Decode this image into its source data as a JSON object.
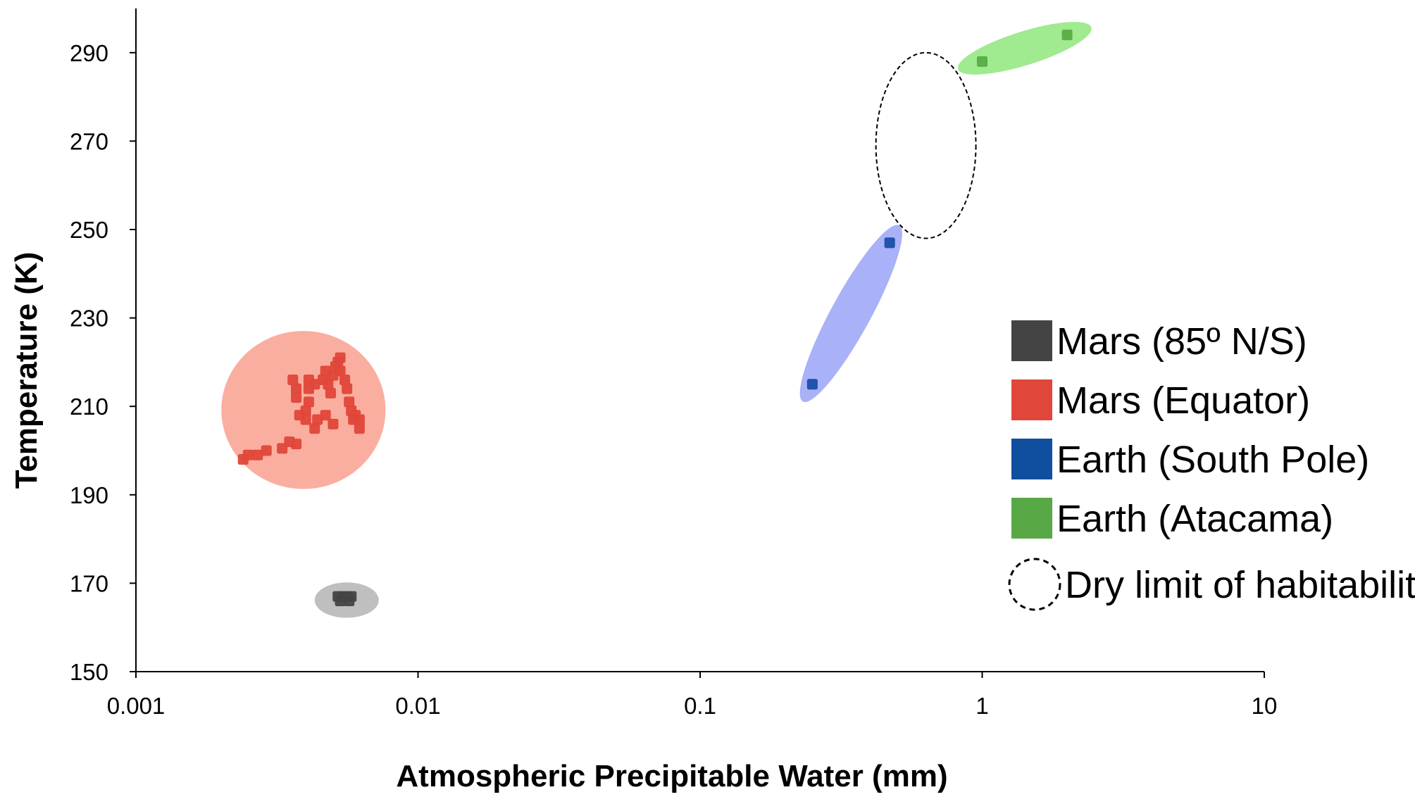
{
  "chart_data": {
    "type": "scatter",
    "xlabel": "Atmospheric Precipitable Water (mm)",
    "ylabel": "Temperature (K)",
    "xscale": "log",
    "xlim": [
      0.001,
      10
    ],
    "ylim": [
      150,
      300
    ],
    "x_ticks": [
      0.001,
      0.01,
      0.1,
      1,
      10
    ],
    "x_tick_labels": [
      "0.001",
      "0.01",
      "0.1",
      "1",
      "10"
    ],
    "y_ticks": [
      150,
      170,
      190,
      210,
      230,
      250,
      270,
      290
    ],
    "y_tick_labels": [
      "150",
      "170",
      "190",
      "210",
      "230",
      "250",
      "270",
      "290"
    ],
    "grid": false,
    "legend_position": "right",
    "series": [
      {
        "name": "Mars (85º N/S)",
        "color": "#444444",
        "region_color": "#b8b8b8",
        "points": [
          [
            0.0052,
            167
          ],
          [
            0.0054,
            167
          ],
          [
            0.0056,
            167
          ],
          [
            0.0058,
            167
          ],
          [
            0.0053,
            166
          ],
          [
            0.0057,
            166
          ]
        ]
      },
      {
        "name": "Mars (Equator)",
        "color": "#e0473a",
        "region_color": "#f9a596",
        "points": [
          [
            0.0024,
            198
          ],
          [
            0.0025,
            199
          ],
          [
            0.0027,
            199
          ],
          [
            0.0029,
            200
          ],
          [
            0.0033,
            200.5
          ],
          [
            0.0035,
            202
          ],
          [
            0.0037,
            201.5
          ],
          [
            0.0036,
            216
          ],
          [
            0.0037,
            214
          ],
          [
            0.0037,
            212
          ],
          [
            0.0038,
            208
          ],
          [
            0.004,
            207
          ],
          [
            0.004,
            209
          ],
          [
            0.0041,
            211
          ],
          [
            0.0041,
            216
          ],
          [
            0.0041,
            214
          ],
          [
            0.0043,
            205
          ],
          [
            0.0043,
            215
          ],
          [
            0.0044,
            207
          ],
          [
            0.0046,
            216
          ],
          [
            0.0047,
            218
          ],
          [
            0.0048,
            215
          ],
          [
            0.0049,
            213
          ],
          [
            0.005,
            217
          ],
          [
            0.005,
            206
          ],
          [
            0.0051,
            219
          ],
          [
            0.0052,
            220
          ],
          [
            0.0053,
            221
          ],
          [
            0.0053,
            218
          ],
          [
            0.0055,
            216
          ],
          [
            0.0056,
            214
          ],
          [
            0.0057,
            211
          ],
          [
            0.0058,
            209
          ],
          [
            0.0059,
            207
          ],
          [
            0.006,
            208
          ],
          [
            0.0062,
            207
          ],
          [
            0.0062,
            205
          ],
          [
            0.0047,
            208
          ]
        ]
      },
      {
        "name": "Earth (South Pole)",
        "color": "#1a4fa8",
        "region_color": "#9aa3f7",
        "points": [
          [
            0.25,
            215
          ],
          [
            0.47,
            247
          ]
        ]
      },
      {
        "name": "Earth (Atacama)",
        "color": "#5aad45",
        "region_color": "#8fe67c",
        "points": [
          [
            1.0,
            288
          ],
          [
            2.0,
            294
          ]
        ]
      }
    ],
    "regions": [
      {
        "name": "Dry limit of habitability",
        "style": "dashed-outline",
        "center": [
          0.63,
          269
        ],
        "x_extent": [
          0.42,
          0.95
        ],
        "y_extent": [
          248,
          290
        ]
      }
    ],
    "legend": [
      {
        "label": "Mars (85º N/S)",
        "color": "#444444",
        "symbol": "square"
      },
      {
        "label": "Mars (Equator)",
        "color": "#e0473a",
        "symbol": "square"
      },
      {
        "label": "Earth (South Pole)",
        "color": "#104ea0",
        "symbol": "square"
      },
      {
        "label": "Earth (Atacama)",
        "color": "#58a845",
        "symbol": "square"
      },
      {
        "label": "Dry limit of habitability",
        "color": "#000000",
        "symbol": "dashed-circle"
      }
    ]
  }
}
